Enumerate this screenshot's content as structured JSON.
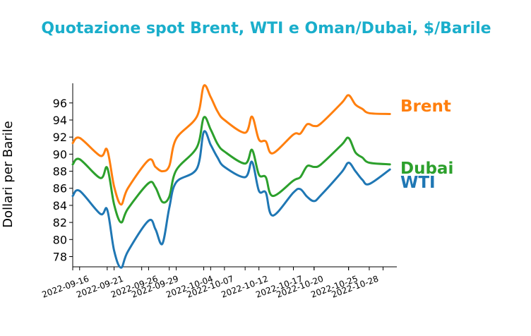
{
  "title": "Quotazione spot Brent, WTI e Oman/Dubai, $/Barile",
  "colors": {
    "title": "#1aaecb",
    "brent": "#ff7f0e",
    "dubai": "#2ca02c",
    "wti": "#1f77b4",
    "axis": "#000000"
  },
  "chart_data": {
    "type": "line",
    "ylabel": "Dollari per Barile",
    "ylim": [
      76.8,
      98.3
    ],
    "xlim": [
      "2022-09-15",
      "2022-11-01"
    ],
    "yticks": [
      78,
      80,
      82,
      84,
      86,
      88,
      90,
      92,
      94,
      96
    ],
    "xtick_labels": [
      "2022-09-16",
      "2022-09-21",
      "2022-09-26",
      "2022-09-29",
      "2022-10-04",
      "2022-10-07",
      "2022-10-12",
      "2022-10-17",
      "2022-10-20",
      "2022-10-25",
      "2022-10-28"
    ],
    "grid": false,
    "legend": "labels at line ends",
    "x": [
      "2022-09-15",
      "2022-09-16",
      "2022-09-19",
      "2022-09-20",
      "2022-09-21",
      "2022-09-22",
      "2022-09-23",
      "2022-09-26",
      "2022-09-27",
      "2022-09-28",
      "2022-09-29",
      "2022-09-30",
      "2022-10-03",
      "2022-10-04",
      "2022-10-05",
      "2022-10-06",
      "2022-10-07",
      "2022-10-10",
      "2022-10-11",
      "2022-10-12",
      "2022-10-13",
      "2022-10-14",
      "2022-10-17",
      "2022-10-18",
      "2022-10-19",
      "2022-10-20",
      "2022-10-21",
      "2022-10-24",
      "2022-10-25",
      "2022-10-26",
      "2022-10-27",
      "2022-10-28",
      "2022-10-31"
    ],
    "series": [
      {
        "name": "Brent",
        "values": [
          91.3,
          91.9,
          89.8,
          90.5,
          86.2,
          84.1,
          86.0,
          89.3,
          88.5,
          88.0,
          88.6,
          91.8,
          94.4,
          98.0,
          96.7,
          95.0,
          94.0,
          92.5,
          94.4,
          91.7,
          91.5,
          90.1,
          92.3,
          92.4,
          93.5,
          93.3,
          93.6,
          96.0,
          96.9,
          95.8,
          95.3,
          94.8,
          94.7
        ]
      },
      {
        "name": "Dubai",
        "values": [
          88.8,
          89.4,
          87.2,
          88.4,
          84.1,
          82.0,
          83.6,
          86.6,
          86.1,
          84.4,
          85.0,
          88.1,
          90.8,
          94.3,
          92.9,
          91.2,
          90.3,
          88.9,
          90.5,
          87.6,
          87.3,
          85.1,
          86.9,
          87.3,
          88.6,
          88.5,
          88.8,
          91.1,
          91.9,
          90.2,
          89.6,
          89.0,
          88.8
        ]
      },
      {
        "name": "WTI",
        "values": [
          85.1,
          85.7,
          83.0,
          83.5,
          78.7,
          76.7,
          78.6,
          82.2,
          81.2,
          79.5,
          83.7,
          86.7,
          88.3,
          92.6,
          91.1,
          89.6,
          88.5,
          87.3,
          89.1,
          85.7,
          85.5,
          82.8,
          85.5,
          85.9,
          85.0,
          84.5,
          85.2,
          87.9,
          89.0,
          88.0,
          87.0,
          86.5,
          88.2
        ]
      }
    ]
  }
}
